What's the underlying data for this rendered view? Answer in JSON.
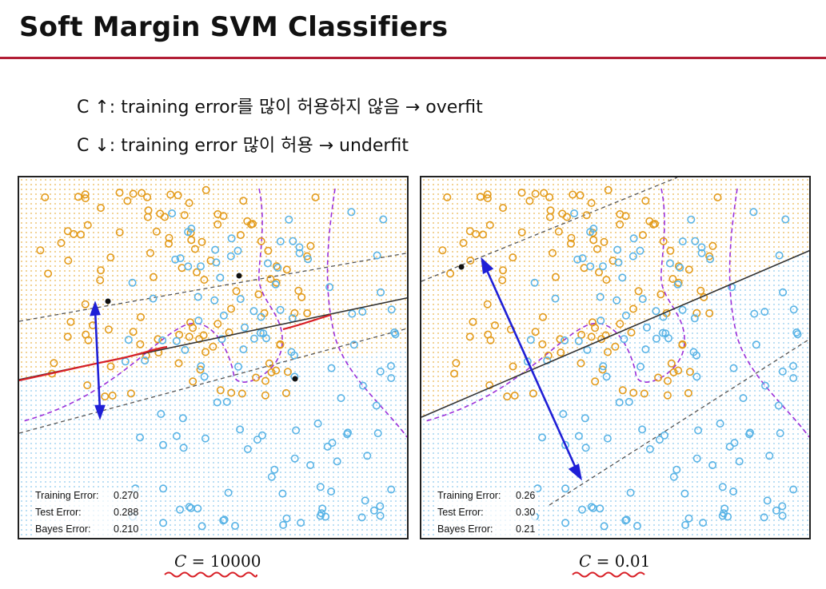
{
  "title": "Soft Margin SVM Classifiers",
  "bullets": [
    "C ↑: training error를 많이 허용하지 않음 → overfit",
    "C ↓: training error 많이 허용 → underfit"
  ],
  "colors": {
    "accent_rule": "#b21e35",
    "orange_class": "#e39b1b",
    "blue_class": "#5ab4e6",
    "bayes_boundary": "#9b30d9",
    "margin_arrow": "#1f1fd6",
    "annotation_red": "#d81f26",
    "boundary": "#333333"
  },
  "panels": [
    {
      "caption_var": "C",
      "caption_eq": " = ",
      "caption_val": "10000",
      "stats": [
        {
          "label": "Training Error:",
          "value": "0.270"
        },
        {
          "label": "Test Error:",
          "value": "0.288"
        },
        {
          "label": "Bayes Error:",
          "value": "0.210"
        }
      ]
    },
    {
      "caption_var": "C",
      "caption_eq": " = ",
      "caption_val": "0.01",
      "stats": [
        {
          "label": "Training Error:",
          "value": "0.26"
        },
        {
          "label": "Test Error:",
          "value": "0.30"
        },
        {
          "label": "Bayes Error:",
          "value": "0.21"
        }
      ]
    }
  ]
}
